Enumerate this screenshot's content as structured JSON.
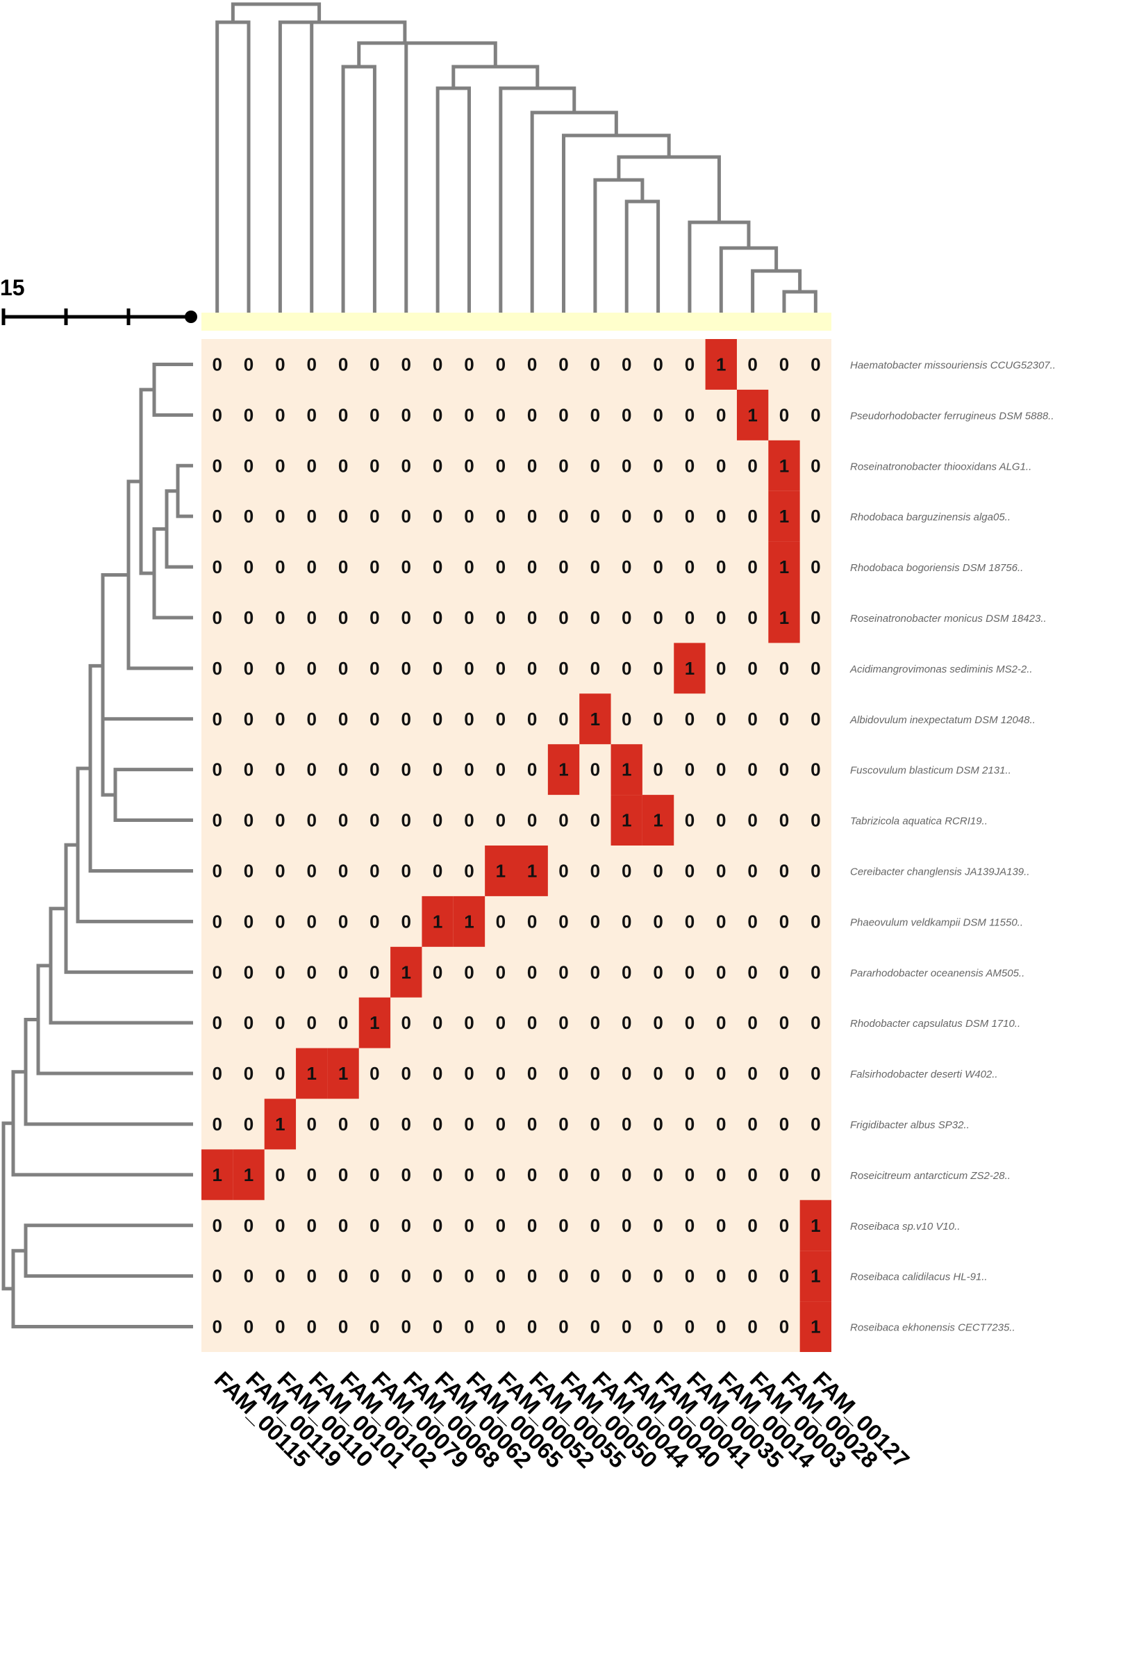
{
  "chart_data": {
    "type": "heatmap",
    "scale_label": "15",
    "columns": [
      "FAM_00115",
      "FAM_00119",
      "FAM_00110",
      "FAM_00101",
      "FAM_00102",
      "FAM_00079",
      "FAM_00068",
      "FAM_00062",
      "FAM_00065",
      "FAM_00052",
      "FAM_00055",
      "FAM_00050",
      "FAM_00044",
      "FAM_00040",
      "FAM_00041",
      "FAM_00035",
      "FAM_00014",
      "FAM_00003",
      "FAM_00028",
      "FAM_00127"
    ],
    "rows": [
      "Haematobacter missouriensis CCUG52307..",
      "Pseudorhodobacter ferrugineus DSM 5888..",
      "Roseinatronobacter thiooxidans ALG1..",
      "Rhodobaca barguzinensis alga05..",
      "Rhodobaca bogoriensis DSM 18756..",
      "Roseinatronobacter monicus DSM 18423..",
      "Acidimangrovimonas sediminis MS2-2..",
      "Albidovulum inexpectatum DSM 12048..",
      "Fuscovulum blasticum DSM 2131..",
      "Tabrizicola aquatica RCRI19..",
      "Cereibacter changlensis JA139JA139..",
      "Phaeovulum veldkampii DSM 11550..",
      "Pararhodobacter oceanensis AM505..",
      "Rhodobacter capsulatus DSM 1710..",
      "Falsirhodobacter deserti W402..",
      "Frigidibacter albus SP32..",
      "Roseicitreum antarcticum ZS2-28..",
      "Roseibaca sp.v10 V10..",
      "Roseibaca calidilacus HL-91..",
      "Roseibaca ekhonensis CECT7235.."
    ],
    "values": [
      [
        0,
        0,
        0,
        0,
        0,
        0,
        0,
        0,
        0,
        0,
        0,
        0,
        0,
        0,
        0,
        0,
        1,
        0,
        0,
        0
      ],
      [
        0,
        0,
        0,
        0,
        0,
        0,
        0,
        0,
        0,
        0,
        0,
        0,
        0,
        0,
        0,
        0,
        0,
        1,
        0,
        0
      ],
      [
        0,
        0,
        0,
        0,
        0,
        0,
        0,
        0,
        0,
        0,
        0,
        0,
        0,
        0,
        0,
        0,
        0,
        0,
        1,
        0
      ],
      [
        0,
        0,
        0,
        0,
        0,
        0,
        0,
        0,
        0,
        0,
        0,
        0,
        0,
        0,
        0,
        0,
        0,
        0,
        1,
        0
      ],
      [
        0,
        0,
        0,
        0,
        0,
        0,
        0,
        0,
        0,
        0,
        0,
        0,
        0,
        0,
        0,
        0,
        0,
        0,
        1,
        0
      ],
      [
        0,
        0,
        0,
        0,
        0,
        0,
        0,
        0,
        0,
        0,
        0,
        0,
        0,
        0,
        0,
        0,
        0,
        0,
        1,
        0
      ],
      [
        0,
        0,
        0,
        0,
        0,
        0,
        0,
        0,
        0,
        0,
        0,
        0,
        0,
        0,
        0,
        1,
        0,
        0,
        0,
        0
      ],
      [
        0,
        0,
        0,
        0,
        0,
        0,
        0,
        0,
        0,
        0,
        0,
        0,
        1,
        0,
        0,
        0,
        0,
        0,
        0,
        0
      ],
      [
        0,
        0,
        0,
        0,
        0,
        0,
        0,
        0,
        0,
        0,
        0,
        1,
        0,
        1,
        0,
        0,
        0,
        0,
        0,
        0
      ],
      [
        0,
        0,
        0,
        0,
        0,
        0,
        0,
        0,
        0,
        0,
        0,
        0,
        0,
        1,
        1,
        0,
        0,
        0,
        0,
        0
      ],
      [
        0,
        0,
        0,
        0,
        0,
        0,
        0,
        0,
        0,
        1,
        1,
        0,
        0,
        0,
        0,
        0,
        0,
        0,
        0,
        0
      ],
      [
        0,
        0,
        0,
        0,
        0,
        0,
        0,
        1,
        1,
        0,
        0,
        0,
        0,
        0,
        0,
        0,
        0,
        0,
        0,
        0
      ],
      [
        0,
        0,
        0,
        0,
        0,
        0,
        1,
        0,
        0,
        0,
        0,
        0,
        0,
        0,
        0,
        0,
        0,
        0,
        0,
        0
      ],
      [
        0,
        0,
        0,
        0,
        0,
        1,
        0,
        0,
        0,
        0,
        0,
        0,
        0,
        0,
        0,
        0,
        0,
        0,
        0,
        0
      ],
      [
        0,
        0,
        0,
        1,
        1,
        0,
        0,
        0,
        0,
        0,
        0,
        0,
        0,
        0,
        0,
        0,
        0,
        0,
        0,
        0
      ],
      [
        0,
        0,
        1,
        0,
        0,
        0,
        0,
        0,
        0,
        0,
        0,
        0,
        0,
        0,
        0,
        0,
        0,
        0,
        0,
        0
      ],
      [
        1,
        1,
        0,
        0,
        0,
        0,
        0,
        0,
        0,
        0,
        0,
        0,
        0,
        0,
        0,
        0,
        0,
        0,
        0,
        0
      ],
      [
        0,
        0,
        0,
        0,
        0,
        0,
        0,
        0,
        0,
        0,
        0,
        0,
        0,
        0,
        0,
        0,
        0,
        0,
        0,
        1
      ],
      [
        0,
        0,
        0,
        0,
        0,
        0,
        0,
        0,
        0,
        0,
        0,
        0,
        0,
        0,
        0,
        0,
        0,
        0,
        0,
        1
      ],
      [
        0,
        0,
        0,
        0,
        0,
        0,
        0,
        0,
        0,
        0,
        0,
        0,
        0,
        0,
        0,
        0,
        0,
        0,
        0,
        1
      ]
    ],
    "colors": {
      "present": "#d62d20",
      "absent": "#fdeedd",
      "strip": "#ffffcc",
      "tree": "#808080",
      "scale": "#000000"
    }
  }
}
